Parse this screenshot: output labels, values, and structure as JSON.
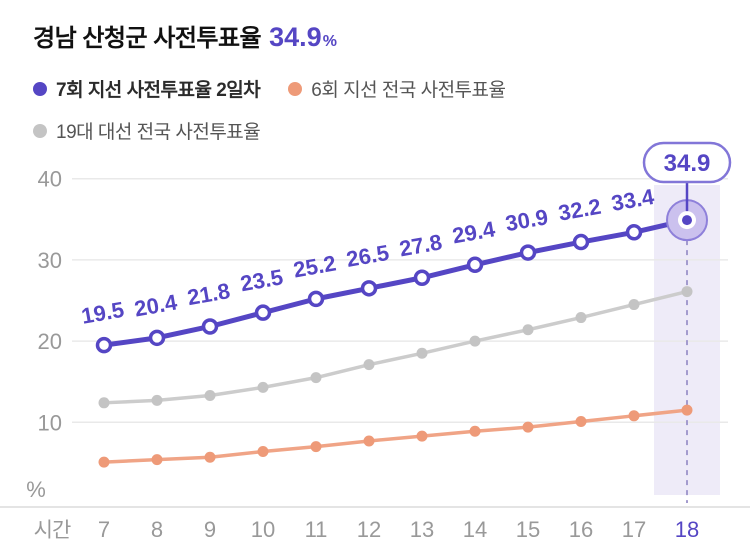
{
  "title": {
    "text": "경남 산청군 사전투표율",
    "value": "34.9",
    "unit": "%"
  },
  "legend": [
    {
      "label": "7회 지선 사전투표율 2일차",
      "color": "#5546c4"
    },
    {
      "label": "6회 지선 전국 사전투표율",
      "color": "#ee9a78"
    },
    {
      "label": "19대 대선 전국 사전투표율",
      "color": "#c4c4c4"
    }
  ],
  "colors": {
    "purple": "#5546c4",
    "orange_line": "#f0a486",
    "orange_dot": "#ee9a78",
    "gray_line": "#cccccc",
    "gray_dot": "#c4c4c4",
    "band": "#eeebf8",
    "grid": "#e9e9e9",
    "axis_line": "#dcdcdc",
    "tick_text": "#999999",
    "halo_fill": "#cbc1ee",
    "halo_stroke": "#8e80da",
    "pill_border": "#8276d8",
    "dash": "#a39bce"
  },
  "chart_data": {
    "type": "line",
    "x": [
      7,
      8,
      9,
      10,
      11,
      12,
      13,
      14,
      15,
      16,
      17,
      18
    ],
    "xlabel": "시간",
    "ylabel": "%",
    "yticks": [
      10,
      20,
      30,
      40
    ],
    "ylim": [
      0,
      45
    ],
    "grid": "horizontal",
    "legend_position": "top",
    "series": [
      {
        "name": "19대 대선 전국 사전투표율",
        "marker": "dot",
        "values": [
          12.4,
          12.7,
          13.3,
          14.3,
          15.5,
          17.1,
          18.5,
          20.0,
          21.4,
          22.9,
          24.5,
          26.1
        ]
      },
      {
        "name": "6회 지선 전국 사전투표율",
        "marker": "dot",
        "values": [
          5.1,
          5.4,
          5.7,
          6.4,
          7.0,
          7.7,
          8.3,
          8.9,
          9.4,
          10.1,
          10.8,
          11.5
        ]
      },
      {
        "name": "7회 지선 사전투표율 2일차",
        "marker": "open-circle",
        "show_labels": true,
        "values": [
          19.5,
          20.4,
          21.8,
          23.5,
          25.2,
          26.5,
          27.8,
          29.4,
          30.9,
          32.2,
          33.4,
          34.9
        ]
      }
    ],
    "highlight": {
      "x": 18,
      "callout_value": "34.9"
    }
  }
}
